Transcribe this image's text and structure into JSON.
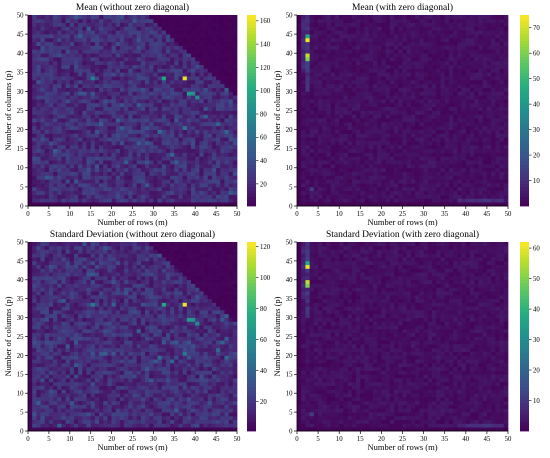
{
  "figure": {
    "colormap": "viridis",
    "colormap_stops": [
      "#440154",
      "#472c7a",
      "#3b518b",
      "#2c718e",
      "#21908d",
      "#27ad81",
      "#5cc863",
      "#aadc32",
      "#fde725"
    ]
  },
  "chart_data": [
    {
      "type": "heatmap",
      "title": "Mean (without zero diagonal)",
      "xlabel": "Number of rows (m)",
      "ylabel": "Number of columns (p)",
      "x_ticks": [
        "0",
        "5",
        "10",
        "15",
        "20",
        "25",
        "30",
        "35",
        "40",
        "45",
        "50"
      ],
      "y_ticks": [
        "0",
        "5",
        "10",
        "15",
        "20",
        "25",
        "30",
        "35",
        "40",
        "45",
        "50"
      ],
      "xlim": [
        0,
        50
      ],
      "ylim": [
        0,
        50
      ],
      "colorbar_ticks": [
        "20",
        "40",
        "60",
        "80",
        "100",
        "120",
        "140",
        "160"
      ],
      "colorbar_range": [
        1,
        165
      ],
      "pattern": "noisy background (~10-35); upper-right triangle (m+p>77) near zero; first row and column near zero",
      "hotspots": [
        {
          "m": 37,
          "p": 33,
          "value": 160
        },
        {
          "m": 32,
          "p": 33,
          "value": 95
        },
        {
          "m": 38,
          "p": 29,
          "value": 90
        },
        {
          "m": 39,
          "p": 29,
          "value": 85
        },
        {
          "m": 40,
          "p": 28,
          "value": 80
        },
        {
          "m": 15,
          "p": 33,
          "value": 70
        },
        {
          "m": 37,
          "p": 20,
          "value": 68
        },
        {
          "m": 31,
          "p": 19,
          "value": 60
        },
        {
          "m": 45,
          "p": 21,
          "value": 55
        },
        {
          "m": 47,
          "p": 19,
          "value": 55
        },
        {
          "m": 26,
          "p": 26,
          "value": 50
        },
        {
          "m": 28,
          "p": 16,
          "value": 45
        }
      ]
    },
    {
      "type": "heatmap",
      "title": "Mean (with zero diagonal)",
      "xlabel": "Number of rows (m)",
      "ylabel": "Number of columns (p)",
      "x_ticks": [
        "0",
        "5",
        "10",
        "15",
        "20",
        "25",
        "30",
        "35",
        "40",
        "45",
        "50"
      ],
      "y_ticks": [
        "0",
        "5",
        "10",
        "15",
        "20",
        "25",
        "30",
        "35",
        "40",
        "45",
        "50"
      ],
      "xlim": [
        0,
        50
      ],
      "ylim": [
        0,
        50
      ],
      "colorbar_ticks": [
        "10",
        "20",
        "30",
        "40",
        "50",
        "60",
        "70"
      ],
      "colorbar_range": [
        0,
        75
      ],
      "pattern": "mostly dark (~1-6); bright column at m=2; light band along p=1 for m=38-48",
      "hotspots": [
        {
          "m": 2,
          "p": 43,
          "value": 73
        },
        {
          "m": 2,
          "p": 39,
          "value": 68
        },
        {
          "m": 2,
          "p": 38,
          "value": 60
        },
        {
          "m": 2,
          "p": 44,
          "value": 45
        },
        {
          "m": 2,
          "p": 36,
          "value": 15
        },
        {
          "m": 3,
          "p": 4,
          "value": 14
        },
        {
          "m": 44,
          "p": 1,
          "value": 12
        },
        {
          "m": 45,
          "p": 1,
          "value": 12
        },
        {
          "m": 40,
          "p": 1,
          "value": 10
        }
      ]
    },
    {
      "type": "heatmap",
      "title": "Standard Deviation (without zero diagonal)",
      "xlabel": "Number of rows (m)",
      "ylabel": "Number of columns (p)",
      "x_ticks": [
        "0",
        "5",
        "10",
        "15",
        "20",
        "25",
        "30",
        "35",
        "40",
        "45",
        "50"
      ],
      "y_ticks": [
        "0",
        "5",
        "10",
        "15",
        "20",
        "25",
        "30",
        "35",
        "40",
        "45",
        "50"
      ],
      "xlim": [
        0,
        50
      ],
      "ylim": [
        0,
        50
      ],
      "colorbar_ticks": [
        "20",
        "40",
        "60",
        "80",
        "100",
        "120"
      ],
      "colorbar_range": [
        1,
        123
      ],
      "pattern": "noisy background (~8-28); upper-right triangle (m+p>77) near zero; first row and column near zero",
      "hotspots": [
        {
          "m": 37,
          "p": 33,
          "value": 120
        },
        {
          "m": 32,
          "p": 33,
          "value": 72
        },
        {
          "m": 38,
          "p": 29,
          "value": 68
        },
        {
          "m": 39,
          "p": 29,
          "value": 64
        },
        {
          "m": 40,
          "p": 28,
          "value": 60
        },
        {
          "m": 15,
          "p": 33,
          "value": 52
        },
        {
          "m": 37,
          "p": 20,
          "value": 50
        },
        {
          "m": 31,
          "p": 19,
          "value": 45
        },
        {
          "m": 45,
          "p": 21,
          "value": 42
        },
        {
          "m": 47,
          "p": 19,
          "value": 42
        },
        {
          "m": 26,
          "p": 26,
          "value": 38
        },
        {
          "m": 28,
          "p": 16,
          "value": 34
        }
      ]
    },
    {
      "type": "heatmap",
      "title": "Standard Deviation (with zero diagonal)",
      "xlabel": "Number of rows (m)",
      "ylabel": "Number of columns (p)",
      "x_ticks": [
        "0",
        "5",
        "10",
        "15",
        "20",
        "25",
        "30",
        "35",
        "40",
        "45",
        "50"
      ],
      "y_ticks": [
        "0",
        "5",
        "10",
        "15",
        "20",
        "25",
        "30",
        "35",
        "40",
        "45",
        "50"
      ],
      "xlim": [
        0,
        50
      ],
      "ylim": [
        0,
        50
      ],
      "colorbar_ticks": [
        "10",
        "20",
        "30",
        "40",
        "50",
        "60"
      ],
      "colorbar_range": [
        0,
        62
      ],
      "pattern": "mostly dark (~1-5); bright column at m=2; light band along p=1 for m=38-48",
      "hotspots": [
        {
          "m": 2,
          "p": 43,
          "value": 60
        },
        {
          "m": 2,
          "p": 39,
          "value": 56
        },
        {
          "m": 2,
          "p": 38,
          "value": 50
        },
        {
          "m": 2,
          "p": 44,
          "value": 38
        },
        {
          "m": 2,
          "p": 36,
          "value": 12
        },
        {
          "m": 3,
          "p": 4,
          "value": 11
        },
        {
          "m": 44,
          "p": 1,
          "value": 10
        },
        {
          "m": 45,
          "p": 1,
          "value": 10
        },
        {
          "m": 40,
          "p": 1,
          "value": 8
        }
      ]
    }
  ]
}
